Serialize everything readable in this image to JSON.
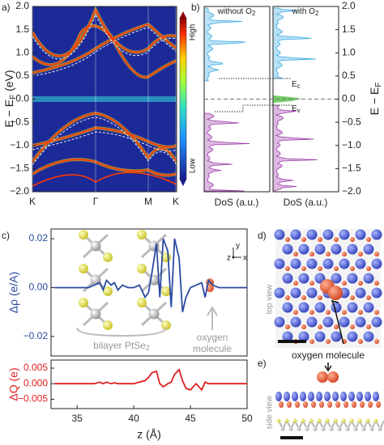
{
  "panel_labels": [
    "a)",
    "b)",
    "c)",
    "d)",
    "e)"
  ],
  "chart_data": [
    {
      "type": "band",
      "ylim": [
        -2,
        2
      ],
      "yticks": [
        {
          "value": 2,
          "label": "2.0"
        },
        {
          "value": 1.5,
          "label": "1.5"
        },
        {
          "value": 1,
          "label": "1.0"
        },
        {
          "value": 0.5,
          "label": "0.5"
        },
        {
          "value": 0,
          "label": "0.0"
        },
        {
          "value": -0.5,
          "label": "−0.5"
        },
        {
          "value": -1,
          "label": "−1.0"
        },
        {
          "value": -1.5,
          "label": "−1.5"
        },
        {
          "value": -2,
          "label": "−2.0"
        }
      ],
      "categories": [
        "K",
        "Γ",
        "M",
        "K"
      ],
      "ylabel": {
        "text": "E − E",
        "sub": "F",
        "tail": " (eV)"
      },
      "colorbar": [
        "High",
        "Low"
      ]
    },
    {
      "type": "dos",
      "ylim": [
        -2,
        2
      ],
      "yticks": [
        {
          "value": 2,
          "label": "2.0"
        },
        {
          "value": 1.5,
          "label": "1.5"
        },
        {
          "value": 1,
          "label": "1.0"
        },
        {
          "value": 0.5,
          "label": "0.5"
        },
        {
          "value": 0,
          "label": "0.0"
        },
        {
          "value": -0.5,
          "label": "−0.5"
        },
        {
          "value": -1,
          "label": "−1.0"
        },
        {
          "value": -1.5,
          "label": "−1.5"
        },
        {
          "value": -2,
          "label": "−2.0"
        }
      ],
      "ylabel": {
        "text": "E − E",
        "sub": "F"
      },
      "panels": [
        {
          "title": {
            "text": "without O",
            "sub": "2"
          },
          "xlabel": "DoS (a.u.)"
        },
        {
          "title": {
            "text": "with O",
            "sub": "2"
          },
          "xlabel": "DoS (a.u.)"
        }
      ],
      "annotations": [
        {
          "text": "E",
          "sub": "c"
        },
        {
          "text": "E",
          "sub": "v"
        }
      ]
    },
    {
      "type": "line",
      "color": "#2b4aa0",
      "xlim": [
        32.7,
        50
      ],
      "ylim": [
        -0.028,
        0.024
      ],
      "yticks": [
        {
          "value": 0.02,
          "label": "0.02"
        },
        {
          "value": 0,
          "label": "0.00"
        },
        {
          "value": -0.02,
          "label": "−0.02"
        }
      ],
      "ylabel": "Δρ (e/A)",
      "x": [
        33,
        35,
        36,
        36.5,
        37,
        37.3,
        37.6,
        38,
        38.3,
        38.6,
        39,
        39.5,
        40,
        40.5,
        41,
        41.3,
        41.6,
        42,
        42.3,
        42.6,
        43,
        43.3,
        43.6,
        44,
        44.3,
        44.6,
        45,
        45.5,
        46,
        46.3,
        46.6,
        47,
        47.5,
        48,
        50
      ],
      "values": [
        0,
        0,
        0,
        0.001,
        0.002,
        -0.001,
        0.003,
        0.001,
        0.002,
        -0.001,
        0.001,
        0,
        0,
        0.001,
        -0.004,
        -0.002,
        0.006,
        0.018,
        -0.004,
        0.02,
        0.015,
        -0.008,
        0.02,
        0.012,
        -0.01,
        -0.004,
        0,
        0.001,
        0.002,
        -0.004,
        0.003,
        0.001,
        0,
        0,
        0
      ],
      "annotations": [
        {
          "text": "bilayer PtSe",
          "sub": "2"
        },
        {
          "text": "oxygen"
        },
        {
          "text": "molecule"
        }
      ],
      "axes_icon": [
        "y",
        "z",
        "x"
      ]
    },
    {
      "type": "line",
      "color": "#e02020",
      "xlim": [
        32.7,
        50
      ],
      "ylim": [
        -0.008,
        0.0076
      ],
      "xticks": [
        35,
        40,
        45,
        50
      ],
      "yticks": [
        {
          "value": 0.005,
          "label": "0.005"
        },
        {
          "value": 0,
          "label": "0.000"
        },
        {
          "value": -0.005,
          "label": "−0.005"
        }
      ],
      "ylabel": "ΔQ (e)",
      "xlabel": "z (Å)",
      "x": [
        33,
        35,
        36,
        36.5,
        37,
        37.3,
        37.6,
        38,
        38.3,
        38.6,
        39,
        39.5,
        40,
        40.5,
        41,
        41.3,
        41.6,
        42,
        42.3,
        42.6,
        43,
        43.3,
        43.6,
        44,
        44.3,
        44.6,
        45,
        45.5,
        46,
        46.3,
        46.6,
        47,
        47.5,
        48,
        50
      ],
      "values": [
        0,
        0,
        0,
        0,
        0.0005,
        0,
        0.0005,
        0,
        0.0003,
        0,
        0,
        0,
        0,
        0.0005,
        0.001,
        0.002,
        0.0035,
        0.004,
        0,
        -0.001,
        0,
        0.0005,
        0.003,
        0.0045,
        0.001,
        -0.0015,
        -0.002,
        0,
        -0.002,
        0.0005,
        0,
        0,
        0,
        0,
        0
      ]
    }
  ],
  "images": {
    "top_label": "top view",
    "side_label": "side view",
    "annotation": "oxygen molecule"
  }
}
